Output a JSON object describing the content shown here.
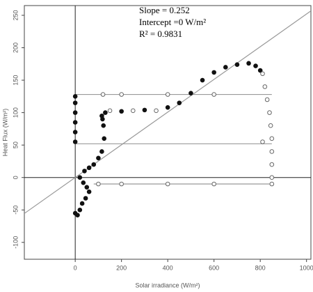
{
  "chart_data": {
    "type": "scatter",
    "xlabel": "Solar irradiance (W/m²)",
    "ylabel": "Heat Flux (W/m²)",
    "annotations": [
      "Slope = 0.252",
      "Intercept =0 W/m²",
      "R² = 0.9831"
    ],
    "xlim": [
      -220,
      1019
    ],
    "ylim": [
      -126,
      265
    ],
    "xticks": [
      0,
      200,
      400,
      600,
      800,
      1000
    ],
    "yticks": [
      -100,
      -50,
      0,
      50,
      100,
      150,
      200,
      250
    ],
    "fit": {
      "slope": 0.252,
      "intercept": 0,
      "color": "#999999"
    },
    "series": [
      {
        "color": "#999999",
        "mode": "line",
        "x": [
          0,
          850
        ],
        "y": [
          128,
          128
        ]
      },
      {
        "color": "#999999",
        "mode": "line",
        "x": [
          0,
          850
        ],
        "y": [
          52,
          52
        ]
      },
      {
        "color": "#999999",
        "mode": "line",
        "x": [
          80,
          850
        ],
        "y": [
          -10,
          -10
        ]
      },
      {
        "color": "#111111",
        "mode": "filled",
        "x": [
          0,
          10,
          20,
          30,
          45,
          60,
          50,
          35,
          20,
          40,
          60,
          80,
          100,
          115,
          125,
          122,
          118,
          115,
          130,
          200,
          300,
          400,
          450,
          500,
          550,
          600,
          650,
          700,
          750,
          780,
          800,
          0,
          0,
          0,
          0,
          0,
          0
        ],
        "y": [
          -55,
          -58,
          -50,
          -40,
          -32,
          -22,
          -15,
          -8,
          0,
          10,
          15,
          20,
          30,
          40,
          60,
          80,
          90,
          95,
          100,
          102,
          104,
          108,
          115,
          130,
          150,
          162,
          170,
          174,
          176,
          172,
          165,
          55,
          70,
          85,
          100,
          115,
          125
        ]
      },
      {
        "color": "#666666",
        "mode": "open",
        "x": [
          810,
          820,
          830,
          840,
          845,
          850,
          850,
          850,
          850,
          850,
          600,
          400,
          200,
          100,
          810,
          600,
          400,
          200,
          120,
          150,
          250,
          350
        ],
        "y": [
          160,
          140,
          120,
          100,
          80,
          60,
          40,
          20,
          0,
          -10,
          -10,
          -10,
          -10,
          -10,
          55,
          128,
          128,
          128,
          128,
          103,
          103,
          103
        ]
      }
    ]
  }
}
